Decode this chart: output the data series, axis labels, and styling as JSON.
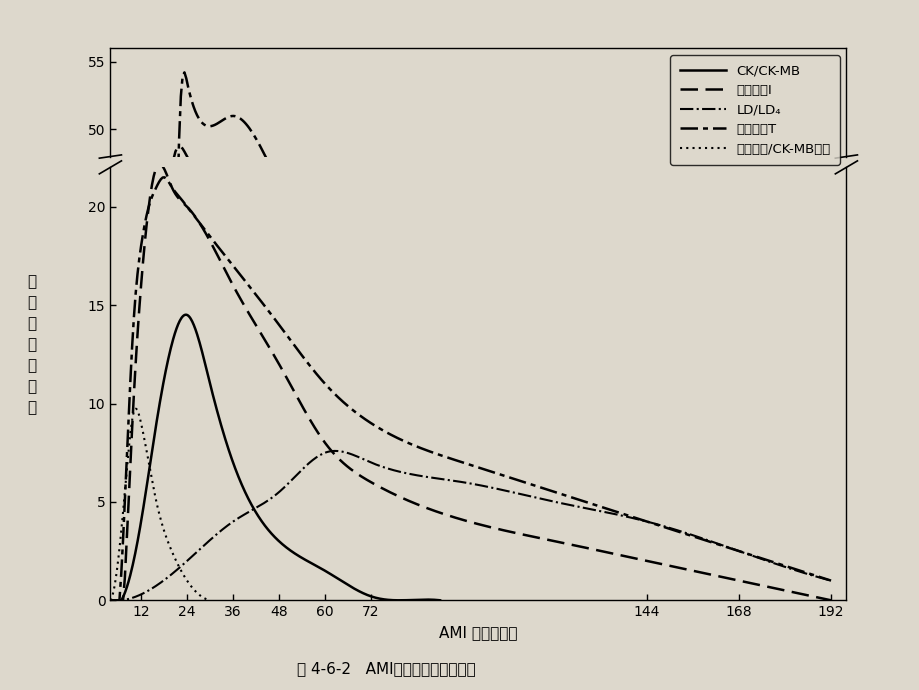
{
  "title": "图 4-6-2   AMI发病与心肌酶的关系",
  "xlabel": "AMI 发病后小时",
  "ylabel": "参\n考\n上\n限\n值\n倍\n数",
  "xticks": [
    12,
    24,
    36,
    48,
    60,
    72,
    144,
    168,
    192
  ],
  "xlim": [
    4,
    196
  ],
  "ylim_lower": [
    0,
    22
  ],
  "ylim_upper": [
    48,
    56
  ],
  "yticks_lower": [
    0,
    5,
    10,
    15,
    20
  ],
  "yticks_upper": [
    50,
    55
  ],
  "background_color": "#ddd8cc",
  "curve_CK_x": [
    4,
    8,
    12,
    16,
    20,
    24,
    30,
    36,
    48,
    60,
    72,
    80,
    90
  ],
  "curve_CK_y": [
    0,
    0.5,
    4,
    9,
    13,
    14.5,
    11,
    7,
    3,
    1.5,
    0.2,
    0,
    0
  ],
  "curve_TnI_x": [
    4,
    8,
    10,
    12,
    14,
    16,
    20,
    24,
    36,
    48,
    60,
    72,
    120,
    144,
    168,
    192
  ],
  "curve_TnI_y": [
    0,
    2,
    10,
    16,
    20,
    22,
    21,
    20,
    16,
    12,
    8,
    6,
    3,
    2,
    1,
    0
  ],
  "curve_LD_x": [
    4,
    12,
    24,
    36,
    48,
    60,
    72,
    96,
    120,
    144,
    168,
    192
  ],
  "curve_LD_y": [
    0,
    0.3,
    2,
    4,
    5.5,
    7.5,
    7,
    6,
    5,
    4,
    2.5,
    1
  ],
  "curve_TnT_x": [
    4,
    8,
    10,
    12,
    14,
    16,
    18,
    20,
    22,
    24,
    36,
    48,
    60,
    72,
    96,
    120,
    144,
    168,
    192
  ],
  "curve_TnT_y": [
    0,
    6,
    14,
    18,
    20,
    21,
    21.5,
    21,
    20.5,
    20,
    17,
    14,
    11,
    9,
    7,
    5.5,
    4,
    2.5,
    1
  ],
  "curve_Myo_x": [
    4,
    6,
    8,
    10,
    12,
    14,
    16,
    20,
    24,
    30
  ],
  "curve_Myo_y": [
    0,
    2,
    6,
    9.5,
    9,
    7,
    5,
    2.5,
    1,
    0
  ],
  "curve_TnI_upper_x": [
    4,
    8,
    10,
    12,
    14,
    16,
    20,
    24,
    36,
    48,
    60,
    72,
    120,
    144,
    168,
    192
  ],
  "curve_TnI_upper_y": [
    0,
    0,
    0,
    0,
    0,
    22,
    47,
    48,
    46,
    40,
    30,
    20,
    8,
    4,
    2,
    0
  ],
  "curve_TnT_upper_x": [
    4,
    8,
    10,
    12,
    14,
    16,
    18,
    20,
    22,
    24,
    36,
    48,
    60,
    72,
    96,
    120,
    144,
    168,
    192
  ],
  "curve_TnT_upper_y": [
    0,
    0,
    0,
    0,
    0,
    0,
    0,
    22,
    50,
    53.5,
    51,
    46,
    40,
    32,
    22,
    14,
    8,
    4,
    2
  ]
}
